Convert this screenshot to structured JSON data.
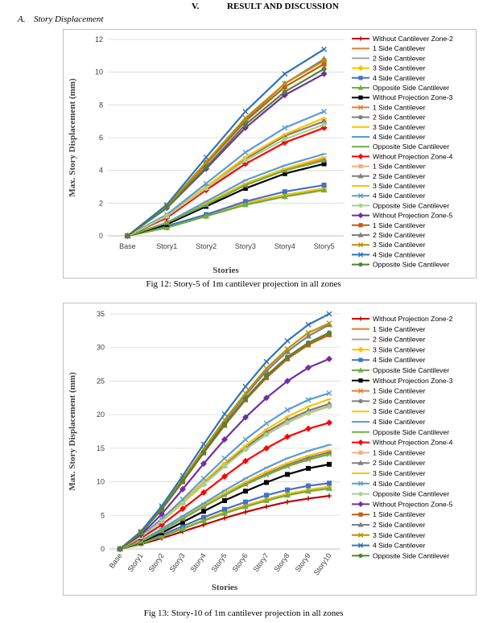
{
  "section": {
    "number": "V.",
    "title": "RESULT AND DISCUSSION"
  },
  "subsection": {
    "label": "A.",
    "title": "Story Displacement"
  },
  "figures": {
    "fig12_caption": "Fig 12: Story-5 of 1m cantilever projection in all zones",
    "fig13_caption": "Fig 13: Story-10 of 1m cantilever projection in all zones"
  },
  "colors": {
    "darkred": "#C00000",
    "orange": "#ED7D31",
    "gray": "#A5A5A5",
    "gold": "#FFC000",
    "blue": "#4472C4",
    "green": "#70AD47",
    "black": "#000000",
    "red": "#FF0000",
    "lightorange": "#F4B183",
    "lightgray": "#BFBFBF",
    "yellow": "#FFD966",
    "lightblue": "#5B9BD5",
    "lightgreen": "#A9D18E",
    "purple": "#7030A0",
    "darkorange": "#C55A11",
    "darkgray": "#7F7F7F",
    "darkgold": "#BF9000",
    "midblue": "#2E75B6",
    "darkgreen": "#548235"
  },
  "chart_data": [
    {
      "type": "line",
      "ylabel": "Max. Story Displacement (mm)",
      "xlabel": "Stories",
      "categories": [
        "Base",
        "Story1",
        "Story2",
        "Story3",
        "Story4",
        "Story5"
      ],
      "ylim": [
        0,
        12
      ],
      "yticks": [
        0,
        2,
        4,
        6,
        8,
        10,
        12
      ],
      "grid": true,
      "legend": "right",
      "series": [
        {
          "name": "Without Cantilever Zone-2",
          "color": "darkred",
          "marker": "plus",
          "values": [
            0,
            0.5,
            1.2,
            1.9,
            2.4,
            2.8
          ]
        },
        {
          "name": "1 Side Cantilever",
          "color": "orange",
          "marker": "dash",
          "values": [
            0,
            0.5,
            1.2,
            1.9,
            2.4,
            2.8
          ]
        },
        {
          "name": "2 Side Cantilever",
          "color": "gray",
          "marker": "dash",
          "values": [
            0,
            0.5,
            1.2,
            2.0,
            2.5,
            2.9
          ]
        },
        {
          "name": "3 Side Cantilever",
          "color": "gold",
          "marker": "diamond",
          "values": [
            0,
            0.5,
            1.2,
            2.0,
            2.5,
            2.9
          ]
        },
        {
          "name": "4 Side Cantilever",
          "color": "blue",
          "marker": "square",
          "values": [
            0,
            0.6,
            1.3,
            2.1,
            2.7,
            3.1
          ]
        },
        {
          "name": "Opposite Side Cantilever",
          "color": "green",
          "marker": "triangle",
          "values": [
            0,
            0.5,
            1.2,
            1.9,
            2.4,
            2.8
          ]
        },
        {
          "name": "Without Projection Zone-3",
          "color": "black",
          "marker": "square",
          "values": [
            0,
            0.7,
            1.8,
            2.9,
            3.8,
            4.4
          ]
        },
        {
          "name": "1 Side Cantilever",
          "color": "orange",
          "marker": "x",
          "values": [
            0,
            0.8,
            1.9,
            3.1,
            4.0,
            4.7
          ]
        },
        {
          "name": "2 Side Cantilever",
          "color": "darkgray",
          "marker": "circle",
          "values": [
            0,
            0.8,
            1.9,
            3.1,
            4.0,
            4.6
          ]
        },
        {
          "name": "3 Side Cantilever",
          "color": "gold",
          "marker": "dash",
          "values": [
            0,
            0.8,
            2.0,
            3.2,
            4.1,
            4.8
          ]
        },
        {
          "name": "4 Side Cantilever",
          "color": "lightblue",
          "marker": "dash",
          "values": [
            0,
            0.8,
            2.1,
            3.4,
            4.3,
            5.0
          ]
        },
        {
          "name": "Opposite Side Cantilever",
          "color": "green",
          "marker": "dash",
          "values": [
            0,
            0.8,
            1.9,
            3.1,
            4.0,
            4.6
          ]
        },
        {
          "name": "Without Projection Zone-4",
          "color": "red",
          "marker": "diamond",
          "values": [
            0,
            1.1,
            2.8,
            4.4,
            5.7,
            6.6
          ]
        },
        {
          "name": "1 Side Cantilever",
          "color": "lightorange",
          "marker": "square",
          "values": [
            0,
            1.2,
            3.0,
            4.7,
            6.1,
            7.0
          ]
        },
        {
          "name": "2 Side Cantilever",
          "color": "darkgray",
          "marker": "triangle",
          "values": [
            0,
            1.2,
            3.0,
            4.7,
            6.1,
            7.0
          ]
        },
        {
          "name": "3 Side Cantilever",
          "color": "gold",
          "marker": "dash",
          "values": [
            0,
            1.2,
            3.0,
            4.8,
            6.2,
            7.2
          ]
        },
        {
          "name": "4 Side Cantilever",
          "color": "lightblue",
          "marker": "x",
          "values": [
            0,
            1.3,
            3.2,
            5.1,
            6.6,
            7.6
          ]
        },
        {
          "name": "Opposite Side Cantilever",
          "color": "lightgreen",
          "marker": "circle",
          "values": [
            0,
            1.2,
            2.9,
            4.6,
            5.9,
            6.8
          ]
        },
        {
          "name": "Without Projection Zone-5",
          "color": "purple",
          "marker": "diamond",
          "values": [
            0,
            1.7,
            4.1,
            6.6,
            8.6,
            9.9
          ]
        },
        {
          "name": "1 Side Cantilever",
          "color": "darkorange",
          "marker": "square",
          "values": [
            0,
            1.8,
            4.4,
            7.0,
            9.1,
            10.5
          ]
        },
        {
          "name": "2 Side Cantilever",
          "color": "darkgray",
          "marker": "triangle",
          "values": [
            0,
            1.8,
            4.5,
            7.1,
            9.3,
            10.8
          ]
        },
        {
          "name": "3 Side Cantilever",
          "color": "darkgold",
          "marker": "x",
          "values": [
            0,
            1.8,
            4.5,
            7.2,
            9.3,
            10.7
          ]
        },
        {
          "name": "4 Side Cantilever",
          "color": "midblue",
          "marker": "x",
          "values": [
            0,
            1.9,
            4.8,
            7.6,
            9.9,
            11.4
          ]
        },
        {
          "name": "Opposite Side Cantilever",
          "color": "darkgreen",
          "marker": "circle",
          "values": [
            0,
            1.7,
            4.2,
            6.8,
            8.8,
            10.2
          ]
        }
      ]
    },
    {
      "type": "line",
      "ylabel": "Max. Story Displacement (mm)",
      "xlabel": "Stories",
      "categories": [
        "Base",
        "Story1",
        "Story2",
        "Story3",
        "Story4",
        "Story5",
        "Story6",
        "Story7",
        "Story8",
        "Story9",
        "Story10"
      ],
      "ylim": [
        0,
        35
      ],
      "yticks": [
        0,
        5,
        10,
        15,
        20,
        25,
        30,
        35
      ],
      "grid": true,
      "legend": "right",
      "series": [
        {
          "name": "Without Projection Zone-2",
          "color": "darkred",
          "marker": "plus",
          "values": [
            0,
            0.7,
            1.6,
            2.6,
            3.6,
            4.6,
            5.5,
            6.3,
            7.0,
            7.5,
            7.9
          ]
        },
        {
          "name": "1 Side Cantilever",
          "color": "orange",
          "marker": "dash",
          "values": [
            0,
            0.8,
            1.9,
            3.0,
            4.2,
            5.3,
            6.3,
            7.2,
            8.0,
            8.6,
            9.0
          ]
        },
        {
          "name": "2 Side Cantilever",
          "color": "gray",
          "marker": "dash",
          "values": [
            0,
            0.8,
            1.9,
            3.1,
            4.3,
            5.4,
            6.4,
            7.3,
            8.1,
            8.7,
            9.1
          ]
        },
        {
          "name": "3 Side Cantilever",
          "color": "gold",
          "marker": "diamond",
          "values": [
            0,
            0.8,
            2.0,
            3.1,
            4.3,
            5.5,
            6.5,
            7.4,
            8.2,
            8.8,
            9.3
          ]
        },
        {
          "name": "4 Side Cantilever",
          "color": "blue",
          "marker": "square",
          "values": [
            0,
            0.8,
            2.1,
            3.4,
            4.7,
            5.9,
            7.0,
            8.0,
            8.8,
            9.4,
            9.8
          ]
        },
        {
          "name": "Opposite Side Cantilever",
          "color": "green",
          "marker": "triangle",
          "values": [
            0,
            0.8,
            1.9,
            3.0,
            4.2,
            5.3,
            6.3,
            7.2,
            8.0,
            8.6,
            9.0
          ]
        },
        {
          "name": "Without Projection Zone-3",
          "color": "black",
          "marker": "square",
          "values": [
            0,
            1.0,
            2.4,
            4.0,
            5.6,
            7.2,
            8.6,
            9.9,
            11.1,
            12.0,
            12.6
          ]
        },
        {
          "name": "1 Side Cantilever",
          "color": "orange",
          "marker": "x",
          "values": [
            0,
            1.1,
            2.7,
            4.5,
            6.3,
            8.0,
            9.6,
            11.0,
            12.3,
            13.3,
            14.1
          ]
        },
        {
          "name": "2 Side Cantilever",
          "color": "darkgray",
          "marker": "circle",
          "values": [
            0,
            1.1,
            2.7,
            4.5,
            6.3,
            8.1,
            9.7,
            11.2,
            12.5,
            13.6,
            14.4
          ]
        },
        {
          "name": "3 Side Cantilever",
          "color": "gold",
          "marker": "dash",
          "values": [
            0,
            1.2,
            2.8,
            4.6,
            6.5,
            8.3,
            10.0,
            11.5,
            12.8,
            13.9,
            14.7
          ]
        },
        {
          "name": "4 Side Cantilever",
          "color": "lightblue",
          "marker": "dash",
          "values": [
            0,
            1.2,
            3.0,
            4.9,
            6.8,
            8.7,
            10.5,
            12.1,
            13.5,
            14.6,
            15.5
          ]
        },
        {
          "name": "Opposite Side Cantilever",
          "color": "green",
          "marker": "dash",
          "values": [
            0,
            1.1,
            2.7,
            4.5,
            6.3,
            8.0,
            9.6,
            11.0,
            12.3,
            13.3,
            14.1
          ]
        },
        {
          "name": "Without Projection Zone-4",
          "color": "red",
          "marker": "diamond",
          "values": [
            0,
            1.6,
            3.6,
            6.0,
            8.4,
            10.8,
            13.1,
            15.0,
            16.7,
            17.9,
            18.8
          ]
        },
        {
          "name": "1 Side Cantilever",
          "color": "lightorange",
          "marker": "square",
          "values": [
            0,
            1.8,
            4.2,
            6.9,
            9.7,
            12.4,
            15.0,
            17.2,
            19.0,
            20.3,
            21.3
          ]
        },
        {
          "name": "2 Side Cantilever",
          "color": "darkgray",
          "marker": "triangle",
          "values": [
            0,
            1.8,
            4.2,
            7.0,
            9.8,
            12.5,
            15.1,
            17.4,
            19.2,
            20.6,
            21.6
          ]
        },
        {
          "name": "3 Side Cantilever",
          "color": "gold",
          "marker": "dash",
          "values": [
            0,
            1.8,
            4.3,
            7.1,
            10.0,
            12.8,
            15.4,
            17.8,
            19.7,
            21.2,
            22.3
          ]
        },
        {
          "name": "4 Side Cantilever",
          "color": "lightblue",
          "marker": "x",
          "values": [
            0,
            1.9,
            4.5,
            7.4,
            10.5,
            13.5,
            16.3,
            18.7,
            20.7,
            22.2,
            23.2
          ]
        },
        {
          "name": "Opposite Side Cantilever",
          "color": "lightgreen",
          "marker": "circle",
          "values": [
            0,
            1.8,
            4.1,
            6.8,
            9.6,
            12.3,
            14.8,
            17.0,
            18.8,
            20.2,
            21.2
          ]
        },
        {
          "name": "Without Projection Zone-5",
          "color": "purple",
          "marker": "diamond",
          "values": [
            0,
            2.1,
            5.2,
            8.9,
            12.7,
            16.3,
            19.6,
            22.5,
            25.0,
            27.0,
            28.3
          ]
        },
        {
          "name": "1 Side Cantilever",
          "color": "darkorange",
          "marker": "square",
          "values": [
            0,
            2.4,
            5.9,
            10.0,
            14.3,
            18.4,
            22.2,
            25.5,
            28.3,
            30.4,
            31.9
          ]
        },
        {
          "name": "2 Side Cantilever",
          "color": "darkgray",
          "marker": "triangle",
          "values": [
            0,
            2.5,
            6.1,
            10.3,
            14.7,
            19.0,
            22.9,
            26.5,
            29.4,
            31.7,
            33.4
          ]
        },
        {
          "name": "3 Side Cantilever",
          "color": "darkgold",
          "marker": "x",
          "values": [
            0,
            2.5,
            6.1,
            10.4,
            14.9,
            19.2,
            23.2,
            26.9,
            29.8,
            32.2,
            33.6
          ]
        },
        {
          "name": "4 Side Cantilever",
          "color": "midblue",
          "marker": "x",
          "values": [
            0,
            2.6,
            6.4,
            10.9,
            15.6,
            20.1,
            24.2,
            27.9,
            31.0,
            33.4,
            35.0
          ]
        },
        {
          "name": "Opposite Side Cantilever",
          "color": "darkgreen",
          "marker": "circle",
          "values": [
            0,
            2.4,
            5.9,
            10.1,
            14.4,
            18.6,
            22.4,
            25.8,
            28.6,
            30.7,
            32.2
          ]
        }
      ]
    }
  ]
}
